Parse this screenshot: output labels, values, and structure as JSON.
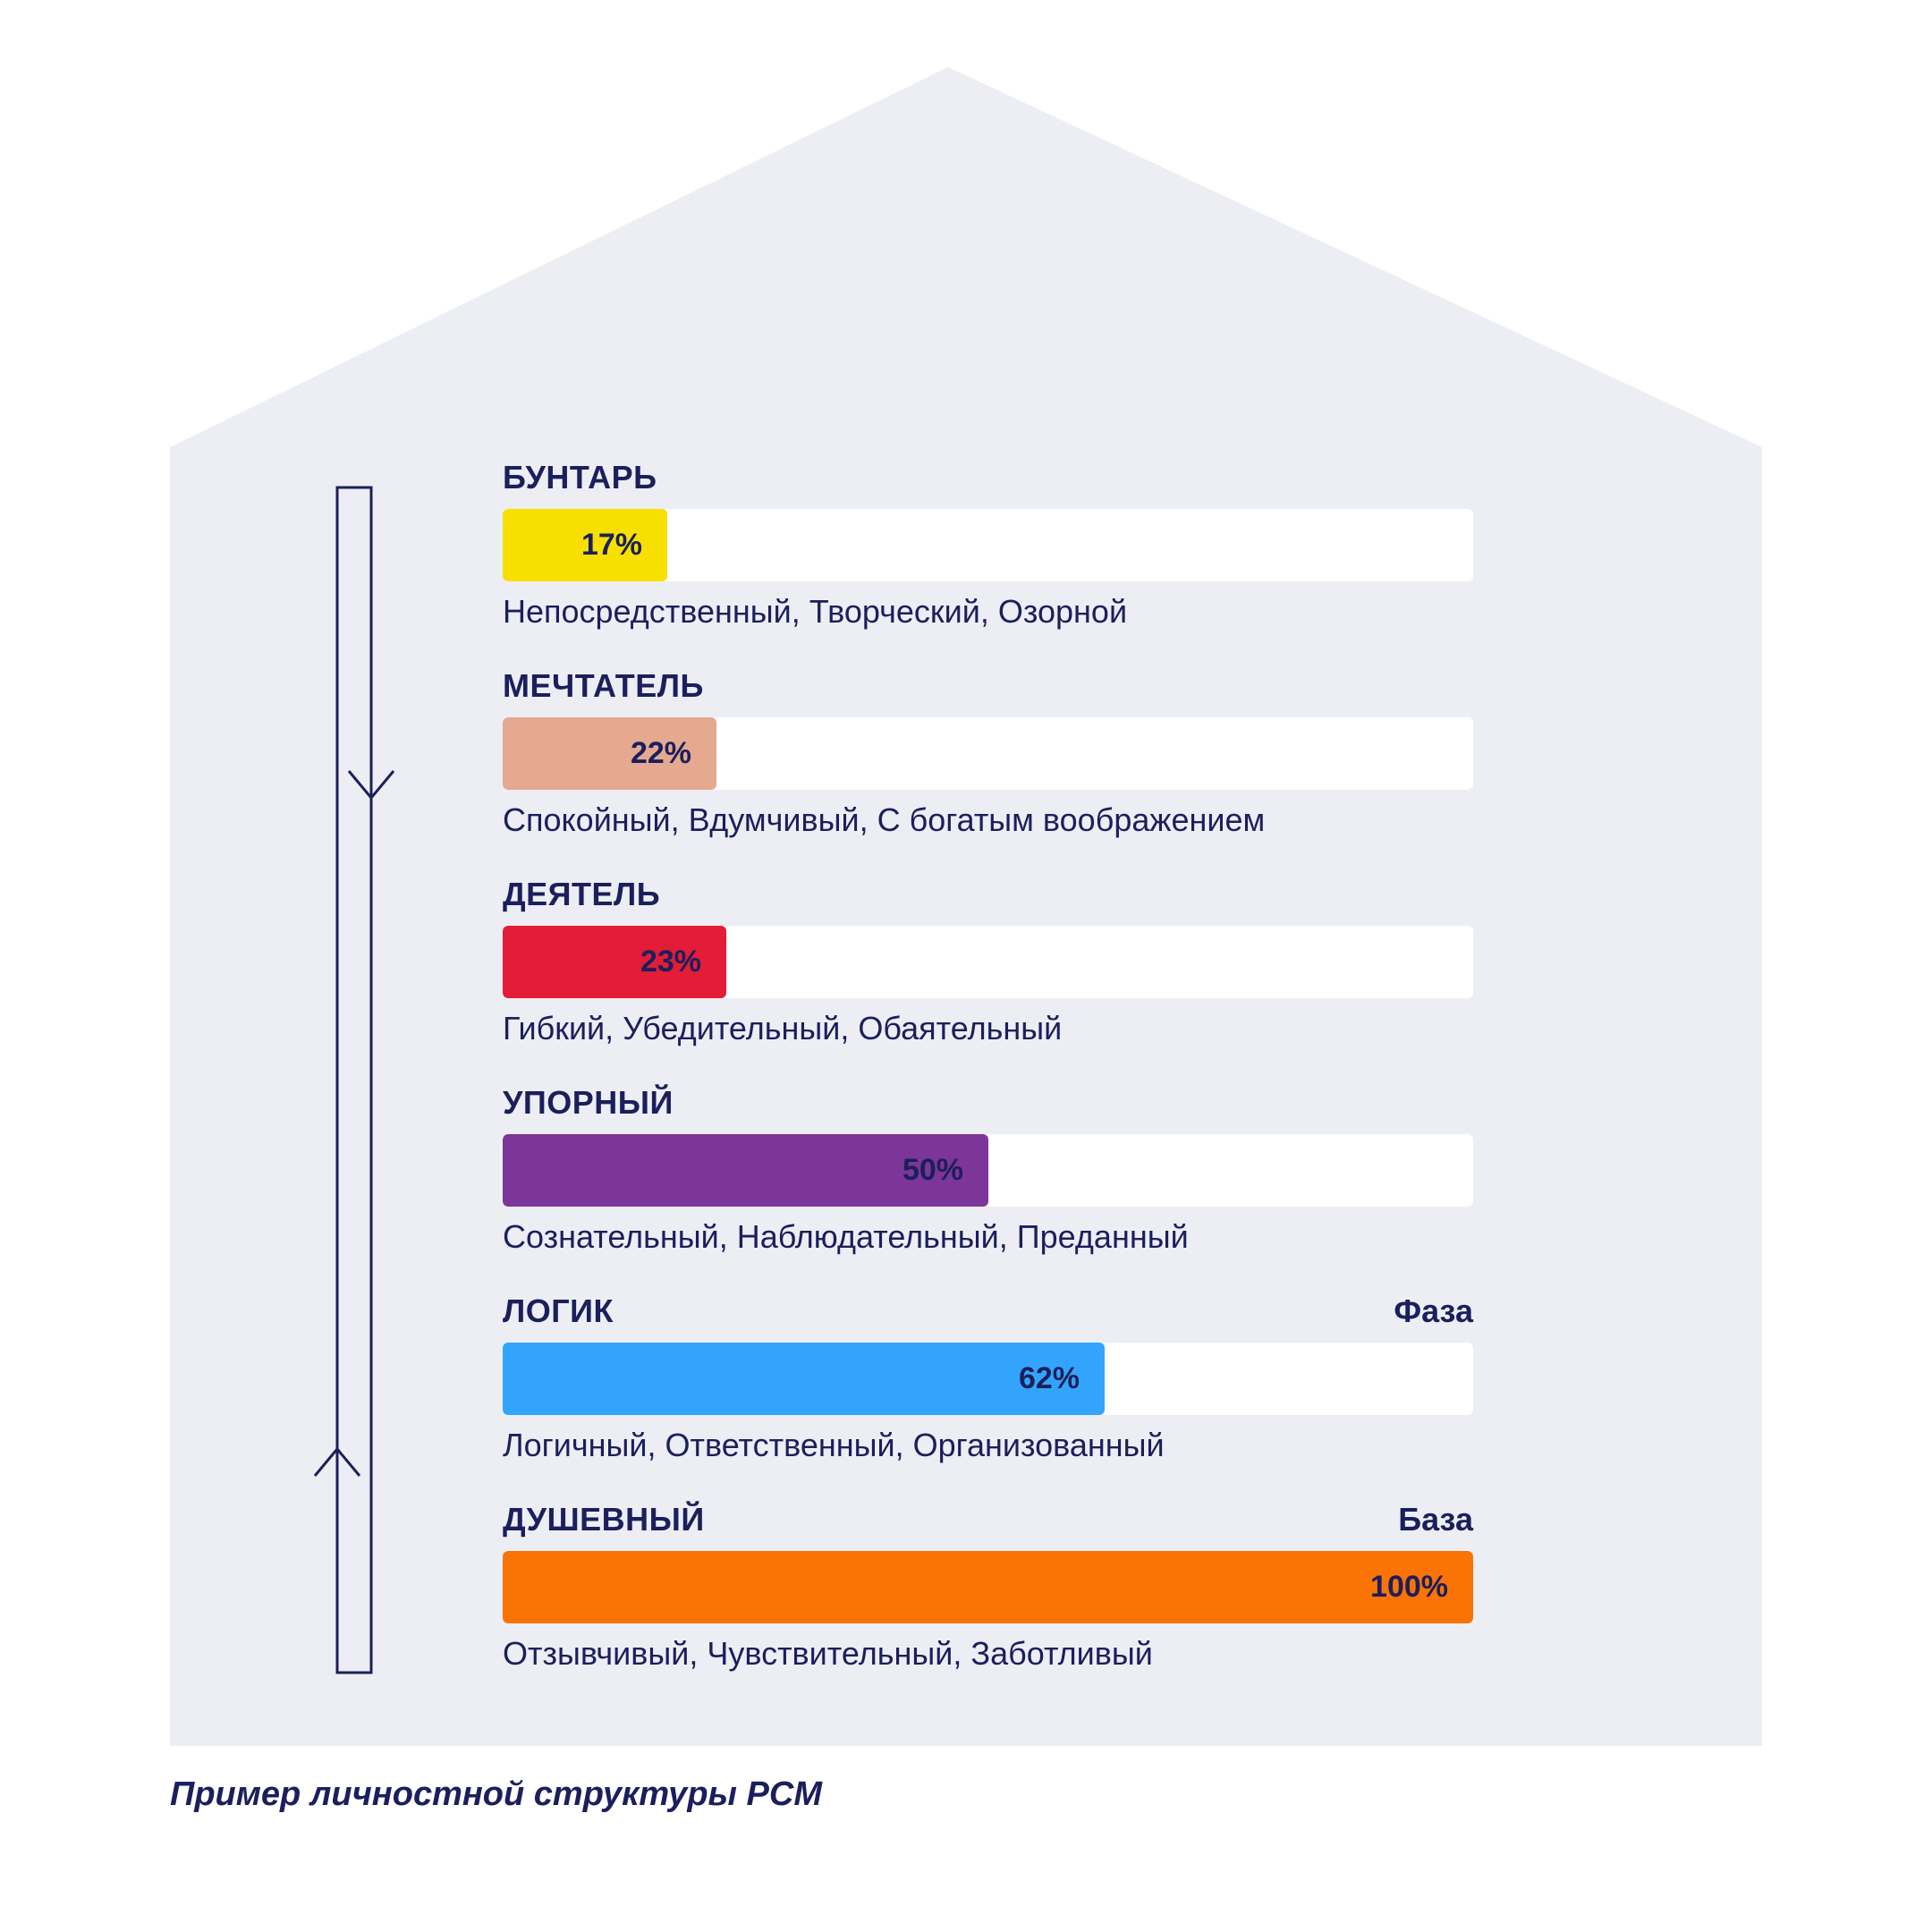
{
  "chart_data": {
    "type": "bar",
    "orientation": "horizontal",
    "series": [
      {
        "category": "БУНТАРЬ",
        "value": 17,
        "label": "17%",
        "color": "#f7e000",
        "traits": "Непосредственный, Творческий, Озорной",
        "tag": ""
      },
      {
        "category": "МЕЧТАТЕЛЬ",
        "value": 22,
        "label": "22%",
        "color": "#e4a98f",
        "traits": "Спокойный, Вдумчивый, С богатым воображением",
        "tag": ""
      },
      {
        "category": "ДЕЯТЕЛЬ",
        "value": 23,
        "label": "23%",
        "color": "#e31c37",
        "traits": "Гибкий, Убедительный, Обаятельный",
        "tag": ""
      },
      {
        "category": "УПОРНЫЙ",
        "value": 50,
        "label": "50%",
        "color": "#7c3599",
        "traits": "Сознательный, Наблюдательный, Преданный",
        "tag": ""
      },
      {
        "category": "ЛОГИК",
        "value": 62,
        "label": "62%",
        "color": "#33a4fb",
        "traits": "Логичный, Ответственный, Организованный",
        "tag": "Фаза"
      },
      {
        "category": "ДУШЕВНЫЙ",
        "value": 100,
        "label": "100%",
        "color": "#fa7305",
        "traits": "Отзывчивый, Чувствительный, Заботливый",
        "tag": "База"
      }
    ],
    "xlim": [
      0,
      100
    ]
  },
  "caption": "Пример личностной структуры PCM",
  "colors": {
    "house": "#eceef4",
    "track": "#ffffff",
    "text": "#1b1f5c"
  },
  "icons": [
    "down-arrow-icon",
    "up-arrow-icon"
  ]
}
